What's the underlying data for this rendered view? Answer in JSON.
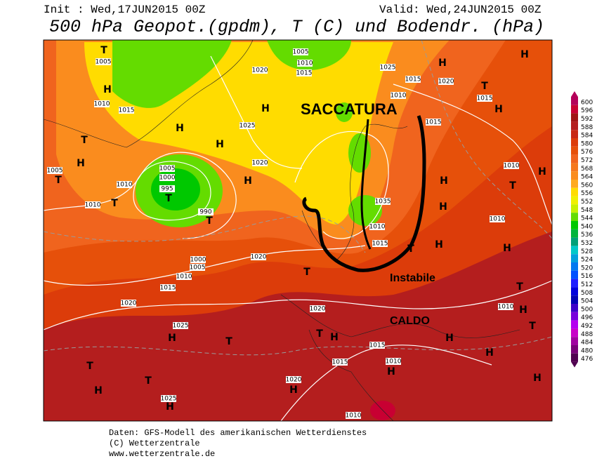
{
  "header": {
    "init": "Init : Wed,17JUN2015 00Z",
    "valid": "Valid: Wed,24JUN2015 00Z",
    "title": "500 hPa Geopot.(gpdm), T (C) und Bodendr. (hPa)"
  },
  "annotations": [
    "SACCATURA",
    "Instabile",
    "CALDO"
  ],
  "map": {
    "labels": [
      "T",
      "1005",
      "H",
      "1010",
      "1015",
      "H",
      "T",
      "H",
      "1005",
      "T",
      "1010",
      "T",
      "1010",
      "1005",
      "1000",
      "995",
      "T",
      "990",
      "T",
      "1000",
      "1005",
      "1010",
      "1015",
      "1020",
      "1025",
      "H",
      "T",
      "T",
      "T",
      "H",
      "1020",
      "H",
      "1025",
      "H",
      "1020",
      "H",
      "1025",
      "H",
      "1020",
      "H",
      "1020",
      "1005",
      "1010",
      "1015",
      "1025",
      "H",
      "1020",
      "T",
      "1015",
      "H",
      "H",
      "1015",
      "1010",
      "T",
      "H",
      "1010",
      "H",
      "H",
      "T",
      "1010",
      "H",
      "1020",
      "H",
      "1015",
      "T",
      "1015",
      "1010",
      "H",
      "H",
      "H",
      "1010",
      "H",
      "T",
      "1015",
      "1010",
      "1035",
      "1015",
      "1010",
      "T",
      "H",
      "T",
      "H"
    ]
  },
  "scale": {
    "values": [
      600,
      596,
      592,
      588,
      584,
      580,
      576,
      572,
      568,
      564,
      560,
      556,
      552,
      548,
      544,
      540,
      536,
      532,
      528,
      524,
      520,
      516,
      512,
      508,
      504,
      500,
      496,
      492,
      488,
      484,
      480,
      476
    ],
    "colors": [
      "#b4005a",
      "#c80032",
      "#a01414",
      "#b41e1e",
      "#c82814",
      "#dc3c0a",
      "#e6500a",
      "#f0641e",
      "#f5781e",
      "#fa8c1e",
      "#ffaa1e",
      "#ffdc00",
      "#f0f000",
      "#c8f000",
      "#64dc00",
      "#00c800",
      "#00b43c",
      "#00a078",
      "#00c8c8",
      "#00a0dc",
      "#0078f0",
      "#0050ff",
      "#1e1eff",
      "#0000dc",
      "#0000b4",
      "#3c00c8",
      "#7800dc",
      "#b400f0",
      "#c800c8",
      "#a000a0",
      "#780078",
      "#500050"
    ]
  },
  "footer": [
    "Daten: GFS-Modell des amerikanischen Wetterdienstes",
    "(C) Wetterzentrale",
    "www.wetterzentrale.de"
  ]
}
